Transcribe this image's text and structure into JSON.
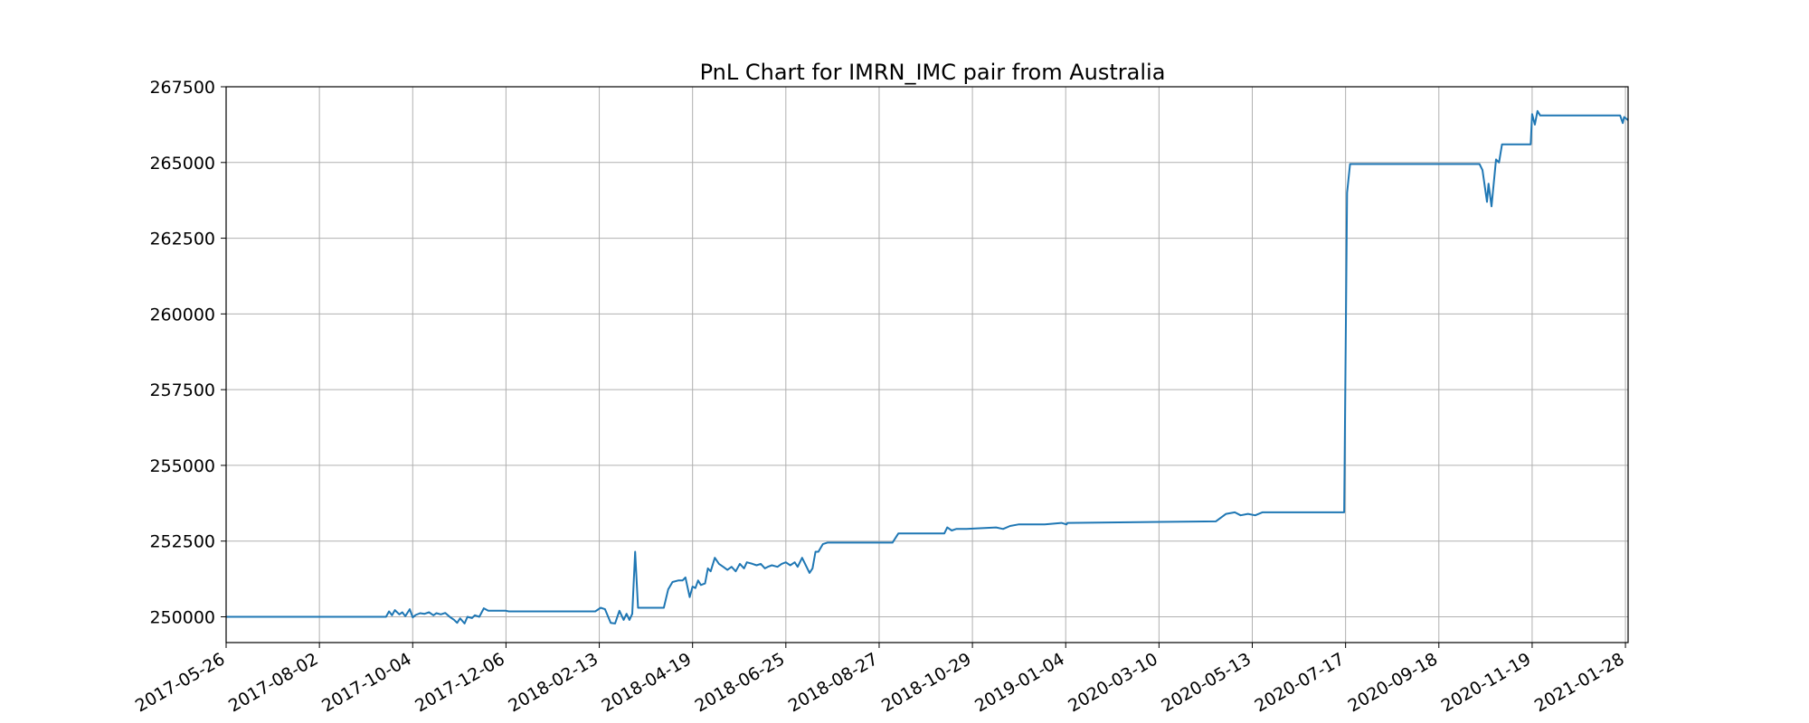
{
  "chart_data": {
    "type": "line",
    "title": "PnL Chart for IMRN_IMC pair from Australia",
    "xlabel": "",
    "ylabel": "",
    "grid": true,
    "legend": "none",
    "x_tick_labels": [
      "2017-05-26",
      "2017-08-02",
      "2017-10-04",
      "2017-12-06",
      "2018-02-13",
      "2018-04-19",
      "2018-06-25",
      "2018-08-27",
      "2018-10-29",
      "2019-01-04",
      "2020-03-10",
      "2020-05-13",
      "2020-07-17",
      "2020-09-18",
      "2020-11-19",
      "2021-01-28"
    ],
    "y_ticks": [
      250000,
      252500,
      255000,
      257500,
      260000,
      262500,
      265000,
      267500
    ],
    "ylim": [
      249150,
      267500
    ],
    "series": [
      {
        "color": "#1f77b4",
        "points": [
          [
            "2017-05-26",
            250000
          ],
          [
            "2017-09-16",
            250000
          ],
          [
            "2017-09-18",
            250180
          ],
          [
            "2017-09-20",
            250050
          ],
          [
            "2017-09-22",
            250220
          ],
          [
            "2017-09-25",
            250080
          ],
          [
            "2017-09-27",
            250150
          ],
          [
            "2017-09-29",
            250020
          ],
          [
            "2017-10-02",
            250250
          ],
          [
            "2017-10-04",
            249980
          ],
          [
            "2017-10-06",
            250060
          ],
          [
            "2017-10-09",
            250120
          ],
          [
            "2017-10-12",
            250100
          ],
          [
            "2017-10-15",
            250150
          ],
          [
            "2017-10-18",
            250050
          ],
          [
            "2017-10-20",
            250120
          ],
          [
            "2017-10-23",
            250080
          ],
          [
            "2017-10-26",
            250130
          ],
          [
            "2017-10-29",
            250000
          ],
          [
            "2017-11-01",
            249900
          ],
          [
            "2017-11-03",
            249800
          ],
          [
            "2017-11-05",
            249950
          ],
          [
            "2017-11-08",
            249780
          ],
          [
            "2017-11-10",
            250000
          ],
          [
            "2017-11-13",
            249960
          ],
          [
            "2017-11-15",
            250050
          ],
          [
            "2017-11-18",
            250000
          ],
          [
            "2017-11-21",
            250280
          ],
          [
            "2017-11-24",
            250200
          ],
          [
            "2017-12-06",
            250200
          ],
          [
            "2017-12-08",
            250180
          ],
          [
            "2018-02-10",
            250180
          ],
          [
            "2018-02-14",
            250300
          ],
          [
            "2018-02-17",
            250250
          ],
          [
            "2018-02-21",
            249800
          ],
          [
            "2018-02-24",
            249780
          ],
          [
            "2018-02-27",
            250200
          ],
          [
            "2018-03-02",
            249900
          ],
          [
            "2018-03-04",
            250100
          ],
          [
            "2018-03-06",
            249900
          ],
          [
            "2018-03-08",
            250100
          ],
          [
            "2018-03-10",
            252150
          ],
          [
            "2018-03-12",
            250300
          ],
          [
            "2018-03-30",
            250300
          ],
          [
            "2018-04-02",
            250900
          ],
          [
            "2018-04-05",
            251150
          ],
          [
            "2018-04-09",
            251200
          ],
          [
            "2018-04-12",
            251200
          ],
          [
            "2018-04-14",
            251300
          ],
          [
            "2018-04-17",
            250650
          ],
          [
            "2018-04-19",
            251000
          ],
          [
            "2018-04-21",
            250950
          ],
          [
            "2018-04-23",
            251200
          ],
          [
            "2018-04-25",
            251050
          ],
          [
            "2018-04-28",
            251100
          ],
          [
            "2018-04-30",
            251600
          ],
          [
            "2018-05-02",
            251500
          ],
          [
            "2018-05-05",
            251950
          ],
          [
            "2018-05-08",
            251750
          ],
          [
            "2018-05-11",
            251650
          ],
          [
            "2018-05-14",
            251550
          ],
          [
            "2018-05-17",
            251650
          ],
          [
            "2018-05-20",
            251500
          ],
          [
            "2018-05-23",
            251750
          ],
          [
            "2018-05-26",
            251600
          ],
          [
            "2018-05-28",
            251800
          ],
          [
            "2018-06-01",
            251750
          ],
          [
            "2018-06-04",
            251700
          ],
          [
            "2018-06-07",
            251750
          ],
          [
            "2018-06-10",
            251600
          ],
          [
            "2018-06-12",
            251650
          ],
          [
            "2018-06-15",
            251700
          ],
          [
            "2018-06-19",
            251650
          ],
          [
            "2018-06-22",
            251750
          ],
          [
            "2018-06-25",
            251800
          ],
          [
            "2018-06-28",
            251700
          ],
          [
            "2018-07-01",
            251800
          ],
          [
            "2018-07-03",
            251650
          ],
          [
            "2018-07-06",
            251950
          ],
          [
            "2018-07-09",
            251650
          ],
          [
            "2018-07-11",
            251450
          ],
          [
            "2018-07-13",
            251600
          ],
          [
            "2018-07-15",
            252150
          ],
          [
            "2018-07-17",
            252150
          ],
          [
            "2018-07-20",
            252400
          ],
          [
            "2018-07-23",
            252450
          ],
          [
            "2018-09-05",
            252450
          ],
          [
            "2018-09-09",
            252750
          ],
          [
            "2018-10-10",
            252750
          ],
          [
            "2018-10-12",
            252950
          ],
          [
            "2018-10-15",
            252850
          ],
          [
            "2018-10-18",
            252900
          ],
          [
            "2018-10-25",
            252900
          ],
          [
            "2018-11-15",
            252950
          ],
          [
            "2018-11-20",
            252900
          ],
          [
            "2018-11-25",
            253000
          ],
          [
            "2018-12-01",
            253050
          ],
          [
            "2018-12-20",
            253050
          ],
          [
            "2019-01-01",
            253100
          ],
          [
            "2019-01-08",
            253050
          ],
          [
            "2019-01-12",
            253100
          ],
          [
            "2020-04-18",
            253150
          ],
          [
            "2020-04-25",
            253400
          ],
          [
            "2020-05-01",
            253450
          ],
          [
            "2020-05-05",
            253350
          ],
          [
            "2020-05-10",
            253400
          ],
          [
            "2020-05-15",
            253350
          ],
          [
            "2020-05-20",
            253450
          ],
          [
            "2020-07-16",
            253450
          ],
          [
            "2020-07-18",
            264000
          ],
          [
            "2020-07-20",
            264950
          ],
          [
            "2020-10-15",
            264950
          ],
          [
            "2020-10-17",
            264750
          ],
          [
            "2020-10-20",
            263700
          ],
          [
            "2020-10-21",
            264300
          ],
          [
            "2020-10-23",
            263550
          ],
          [
            "2020-10-26",
            265100
          ],
          [
            "2020-10-28",
            265000
          ],
          [
            "2020-10-30",
            265600
          ],
          [
            "2020-11-18",
            265600
          ],
          [
            "2020-11-19",
            266600
          ],
          [
            "2020-11-21",
            266250
          ],
          [
            "2020-11-23",
            266700
          ],
          [
            "2020-11-25",
            266550
          ],
          [
            "2021-01-24",
            266550
          ],
          [
            "2021-01-26",
            266300
          ],
          [
            "2021-01-27",
            266500
          ],
          [
            "2021-01-30",
            266400
          ]
        ]
      }
    ]
  }
}
